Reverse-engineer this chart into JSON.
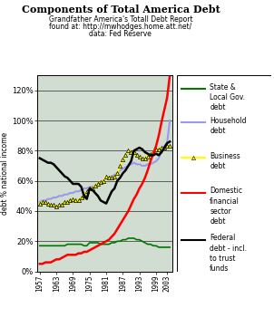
{
  "title": "Components of Total America Debt",
  "subtitle1": "Grandfather America's Totall Debt Report",
  "subtitle2": "found at: http://mwhodges.home.att.net/",
  "subtitle3": "data: Fed Reserve",
  "ylabel": "debt % national income",
  "bg_color": "#d0ddd0",
  "years": [
    1957,
    1958,
    1959,
    1960,
    1961,
    1962,
    1963,
    1964,
    1965,
    1966,
    1967,
    1968,
    1969,
    1970,
    1971,
    1972,
    1973,
    1974,
    1975,
    1976,
    1977,
    1978,
    1979,
    1980,
    1981,
    1982,
    1983,
    1984,
    1985,
    1986,
    1987,
    1988,
    1989,
    1990,
    1991,
    1992,
    1993,
    1994,
    1995,
    1996,
    1997,
    1998,
    1999,
    2000,
    2001,
    2002,
    2003,
    2004
  ],
  "state_local": [
    17,
    17,
    17,
    17,
    17,
    17,
    17,
    17,
    17,
    17,
    18,
    18,
    18,
    18,
    18,
    18,
    17,
    17,
    19,
    19,
    19,
    19,
    18,
    18,
    18,
    18,
    19,
    19,
    20,
    20,
    21,
    21,
    22,
    22,
    22,
    21,
    21,
    20,
    19,
    18,
    18,
    17,
    17,
    16,
    16,
    16,
    16,
    16
  ],
  "household": [
    46,
    47,
    47,
    48,
    48,
    49,
    49,
    50,
    50,
    51,
    51,
    52,
    52,
    53,
    53,
    54,
    55,
    55,
    56,
    56,
    57,
    58,
    59,
    60,
    62,
    62,
    63,
    64,
    65,
    67,
    68,
    69,
    70,
    71,
    72,
    71,
    71,
    70,
    70,
    71,
    71,
    72,
    73,
    75,
    80,
    83,
    85,
    100
  ],
  "business": [
    45,
    46,
    46,
    45,
    44,
    44,
    43,
    44,
    44,
    46,
    46,
    47,
    48,
    47,
    47,
    49,
    50,
    53,
    55,
    55,
    57,
    58,
    59,
    60,
    63,
    62,
    62,
    63,
    65,
    70,
    74,
    77,
    80,
    79,
    79,
    77,
    76,
    75,
    75,
    76,
    78,
    79,
    81,
    81,
    82,
    82,
    83,
    83
  ],
  "financial": [
    5,
    5,
    6,
    6,
    6,
    7,
    8,
    8,
    9,
    10,
    11,
    11,
    11,
    11,
    12,
    12,
    13,
    13,
    14,
    15,
    16,
    17,
    18,
    19,
    20,
    21,
    23,
    25,
    28,
    31,
    34,
    37,
    40,
    44,
    48,
    51,
    55,
    58,
    62,
    67,
    73,
    78,
    83,
    90,
    99,
    107,
    115,
    130
  ],
  "federal": [
    75,
    74,
    73,
    72,
    72,
    71,
    69,
    67,
    65,
    63,
    62,
    60,
    58,
    58,
    58,
    56,
    50,
    48,
    55,
    54,
    52,
    50,
    47,
    46,
    45,
    49,
    53,
    55,
    60,
    62,
    65,
    67,
    70,
    73,
    80,
    81,
    82,
    81,
    79,
    78,
    77,
    77,
    78,
    77,
    79,
    82,
    85,
    86
  ],
  "xticks": [
    1957,
    1963,
    1969,
    1975,
    1981,
    1987,
    1993,
    1999,
    2003
  ],
  "xlim": [
    1956,
    2005
  ],
  "ylim": [
    0,
    130
  ],
  "yticks": [
    0,
    20,
    40,
    60,
    80,
    100,
    120
  ],
  "line_colors": {
    "state_local": "#007700",
    "household": "#9999ee",
    "business": "#ffff00",
    "financial": "#ff0000",
    "federal": "#000000"
  },
  "legend_labels": {
    "state_local": "State &\nLocal Gov.\ndebt",
    "household": "Household\ndebt",
    "business": "Business\ndebt",
    "financial": "Domestic\nfinancial\nsector\ndebt",
    "federal": "Federal\ndebt - incl.\nto trust\nfunds"
  }
}
